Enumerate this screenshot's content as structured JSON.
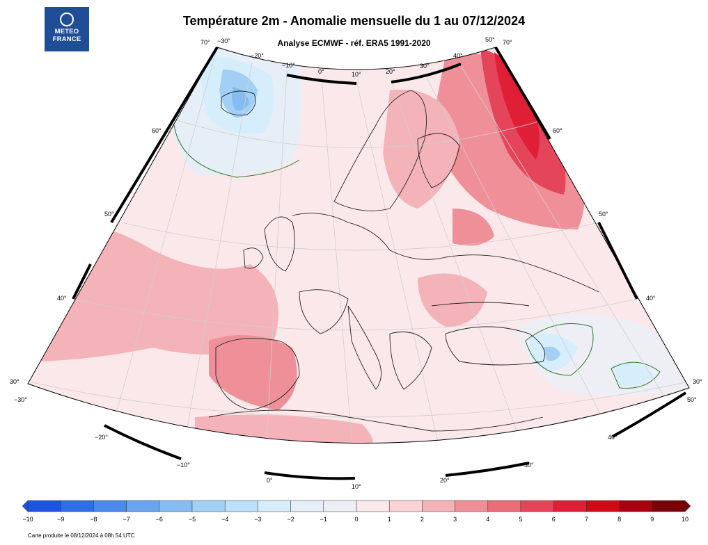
{
  "logo": {
    "line1": "METEO",
    "line2": "FRANCE"
  },
  "title": "Température 2m - Anomalie mensuelle du 1 au 07/12/2024",
  "subtitle": "Analyse ECMWF - réf. ERA5 1991-2020",
  "map": {
    "lat_labels_left": [
      "70°",
      "60°",
      "50°",
      "40°",
      "30°"
    ],
    "lat_labels_right": [
      "70°",
      "60°",
      "50°",
      "40°",
      "30°"
    ],
    "lon_labels_top": [
      "−30°",
      "−20°",
      "−10°",
      "0°",
      "10°",
      "20°",
      "30°",
      "40°",
      "50°"
    ],
    "lon_labels_bottom": [
      "−30°",
      "−20°",
      "−10°",
      "0°",
      "10°",
      "20°",
      "30°",
      "40°",
      "50°"
    ]
  },
  "colorbar": {
    "ticks": [
      "−10",
      "−9",
      "−8",
      "−7",
      "−6",
      "−5",
      "−4",
      "−3",
      "−2",
      "−1",
      "0",
      "1",
      "2",
      "3",
      "4",
      "5",
      "6",
      "7",
      "8",
      "9",
      "10"
    ],
    "colors": [
      "#1d55e3",
      "#2e6fe6",
      "#4b89ea",
      "#6aa3ee",
      "#86bcf2",
      "#a2d0f5",
      "#bde0f8",
      "#d6edfb",
      "#e6eef7",
      "#eeeef5",
      "#fbe8ea",
      "#f9d3d6",
      "#f4b3b8",
      "#ef9099",
      "#ea6c78",
      "#e4455a",
      "#df1f36",
      "#d20a16",
      "#a80010",
      "#7a0008"
    ]
  },
  "footer": "Carte produite le 08/12/2024 à 08h 54 UTC"
}
